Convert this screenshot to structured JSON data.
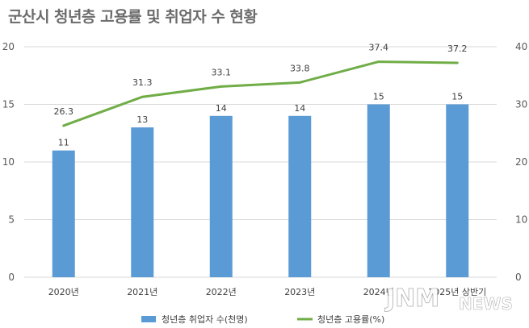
{
  "title": "군산시 청년층 고용률 및 취업자 수 현황",
  "watermark": "JNM NEWS",
  "colors": {
    "bar": "#5b9bd5",
    "line": "#70ad47",
    "grid": "#d9d9d9",
    "text": "#595959"
  },
  "chart_data": {
    "type": "bar",
    "categories": [
      "2020년",
      "2021년",
      "2022년",
      "2023년",
      "2024년",
      "2025년 상반기"
    ],
    "series": [
      {
        "name": "청년층 취업자 수(천명)",
        "type": "bar",
        "axis": "left",
        "values": [
          11,
          13,
          14,
          14,
          15,
          15
        ],
        "labels": [
          "11",
          "13",
          "14",
          "14",
          "15",
          "15"
        ]
      },
      {
        "name": "청년층 고용률(%)",
        "type": "line",
        "axis": "right",
        "values": [
          26.3,
          31.3,
          33.1,
          33.8,
          37.4,
          37.2
        ],
        "labels": [
          "26.3",
          "31.3",
          "33.1",
          "33.8",
          "37.4",
          "37.2"
        ]
      }
    ],
    "y_left": {
      "lim": [
        0,
        20
      ],
      "ticks": [
        "0",
        "5",
        "10",
        "15",
        "20"
      ]
    },
    "y_right": {
      "lim": [
        0,
        40
      ],
      "ticks": [
        "0",
        "10",
        "20",
        "30",
        "40"
      ]
    },
    "grid": true,
    "legend_position": "bottom"
  }
}
